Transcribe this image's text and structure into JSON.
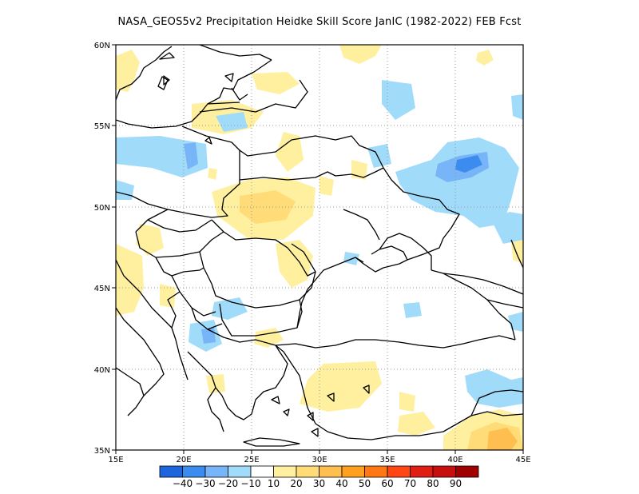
{
  "title": "NASA_GEOS5v2  Precipitation Heidke Skill Score JanIC (1982-2022) FEB Fcst",
  "lon_labels": [
    "15E",
    "20E",
    "25E",
    "30E",
    "35E",
    "40E",
    "45E"
  ],
  "lat_labels": [
    "35N",
    "40N",
    "45N",
    "50N",
    "55N",
    "60N"
  ],
  "colorbar": {
    "colors": [
      "#1e64dc",
      "#3c8cf0",
      "#78b4f8",
      "#a0dcfa",
      "#ffffff",
      "#fff0a0",
      "#ffdc78",
      "#ffbe50",
      "#ffa01e",
      "#ff7814",
      "#ff4614",
      "#e11e14",
      "#c80f0f",
      "#a00000"
    ],
    "labels": [
      "-40",
      "-30",
      "-20",
      "-10",
      "10",
      "20",
      "30",
      "40",
      "50",
      "60",
      "70",
      "80",
      "90"
    ]
  },
  "map_extent": {
    "lon": [
      15,
      45
    ],
    "lat": [
      35,
      60
    ]
  }
}
